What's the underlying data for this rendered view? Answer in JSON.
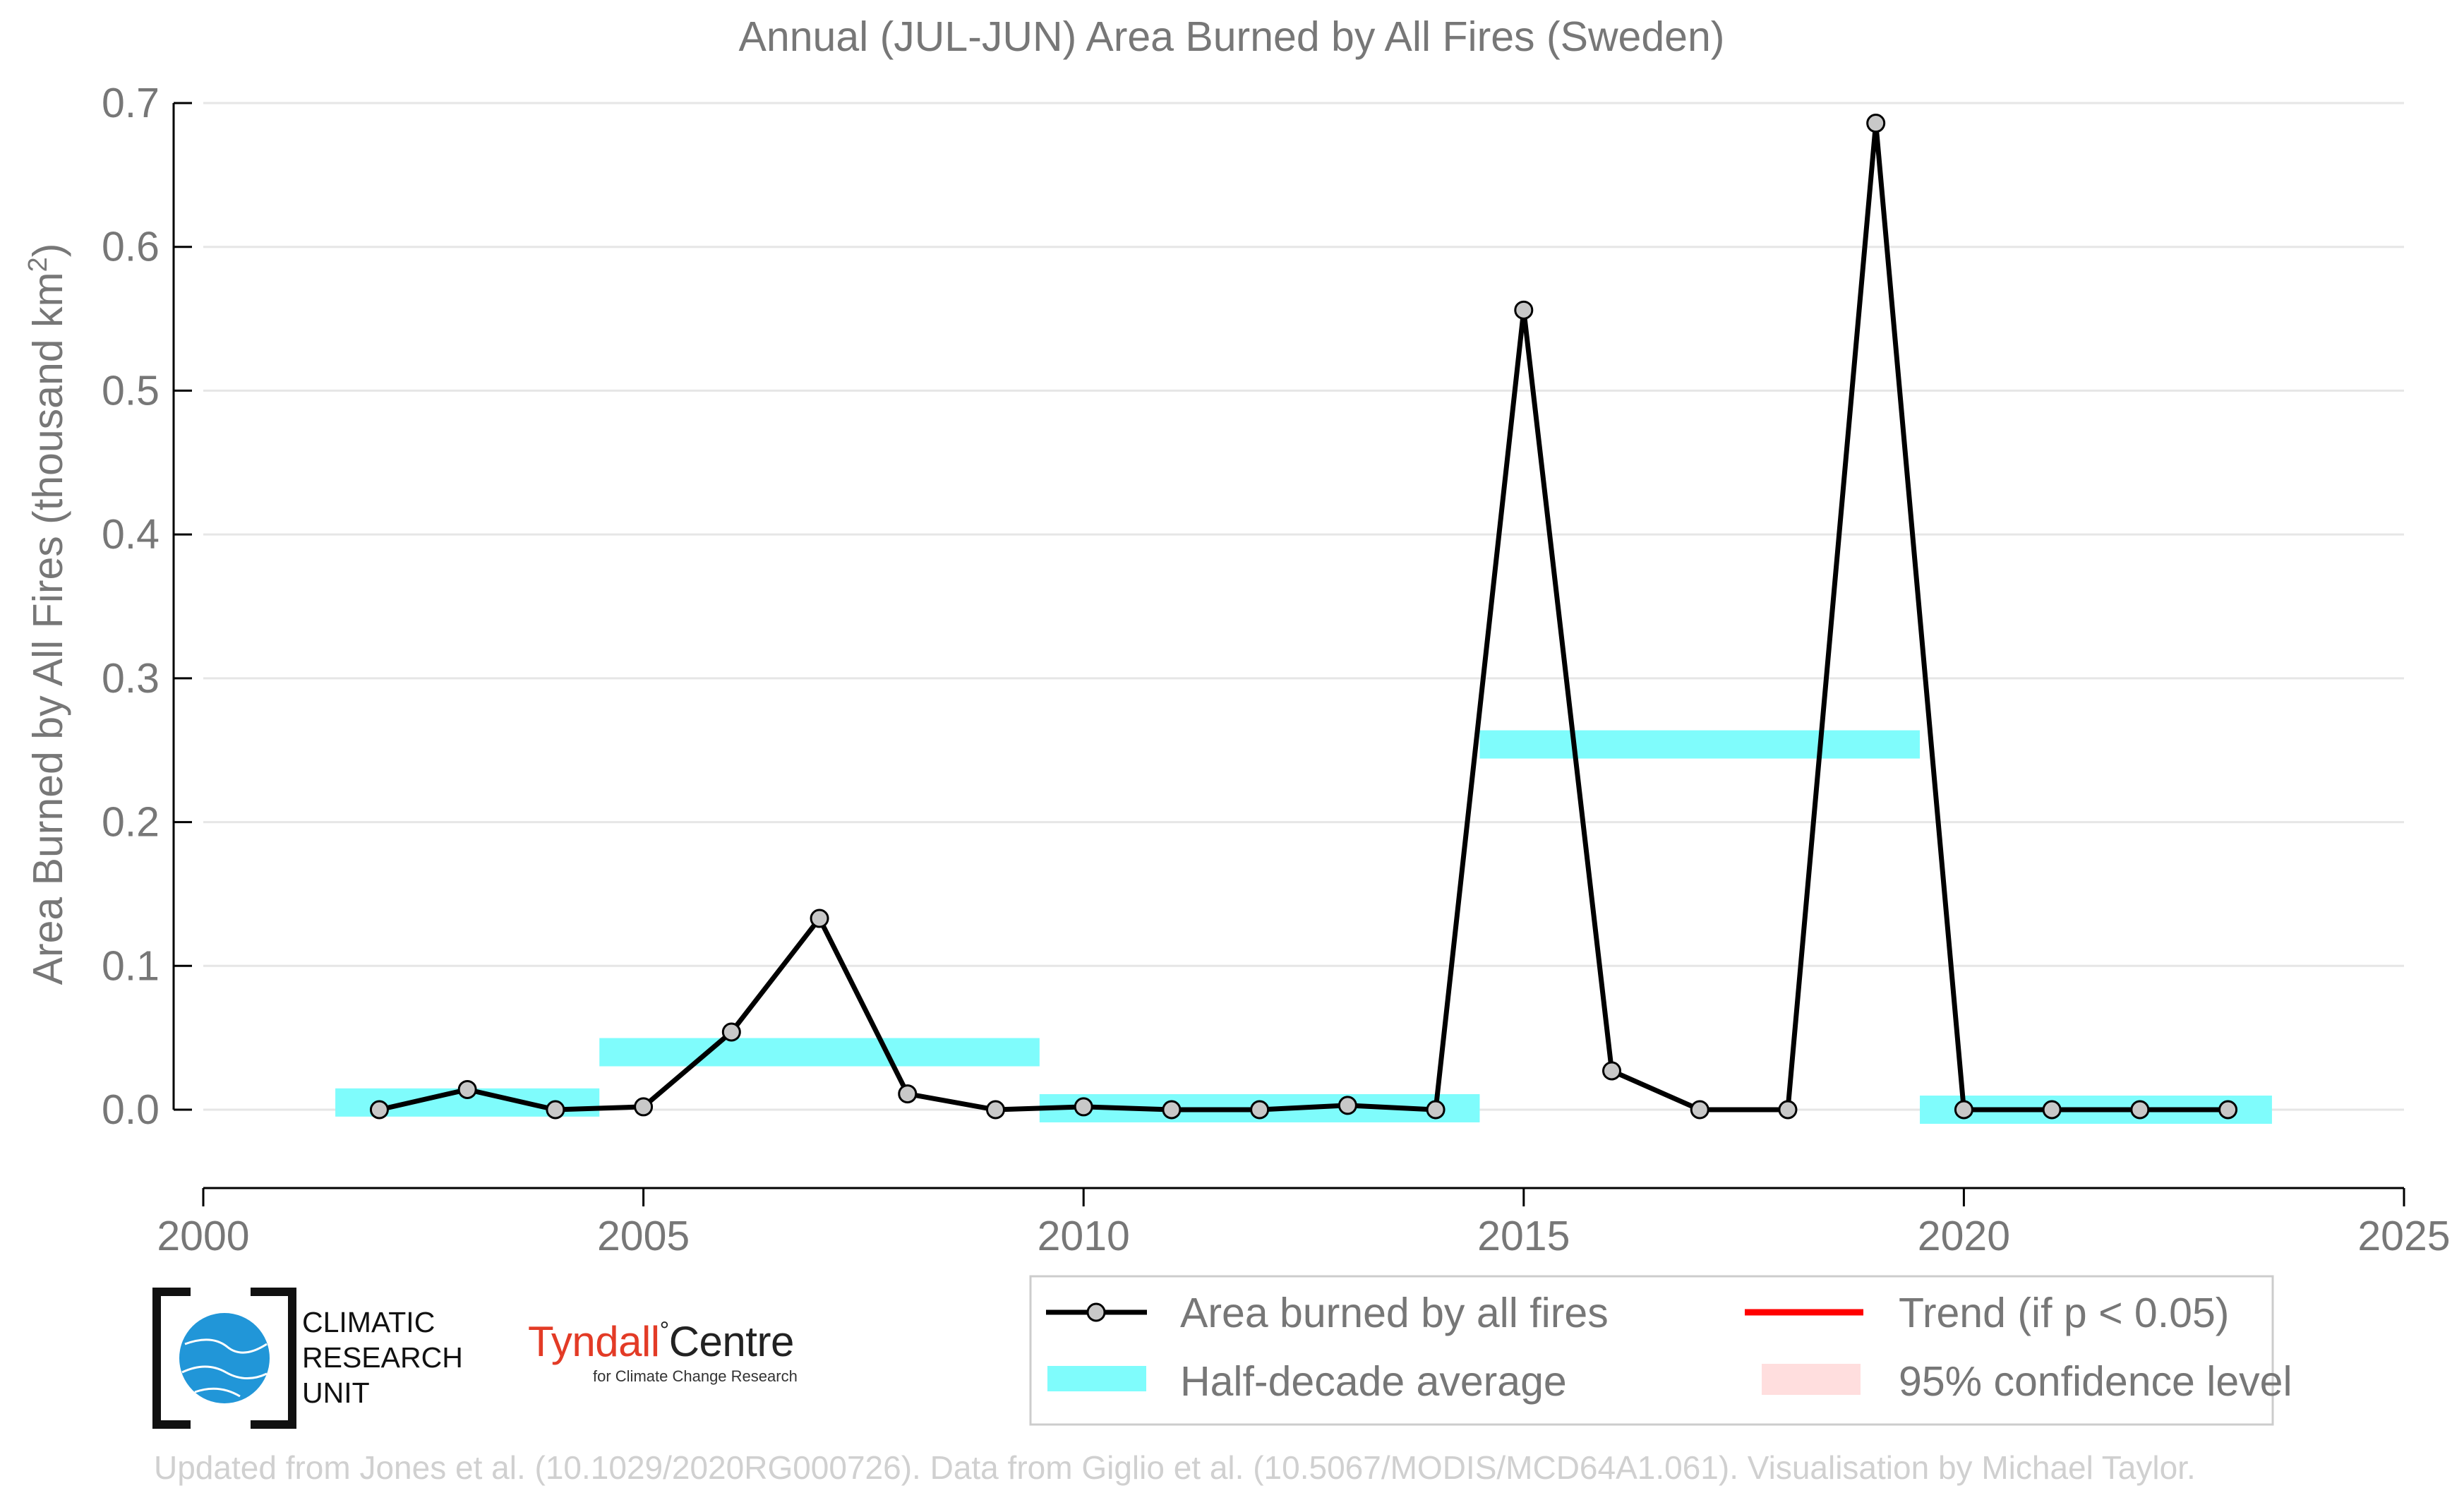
{
  "chart_data": {
    "type": "line",
    "title": "Annual (JUL-JUN) Area Burned by All Fires (Sweden)",
    "ylabel": "Area Burned by All Fires (thousand km",
    "ylabel_superscript": "2",
    "ylabel_suffix": ")",
    "xlim": [
      2000,
      2025
    ],
    "ylim": [
      -0.055,
      0.7
    ],
    "xticks": [
      2000,
      2005,
      2010,
      2015,
      2020,
      2025
    ],
    "yticks": [
      0.0,
      0.1,
      0.2,
      0.3,
      0.4,
      0.5,
      0.6,
      0.7
    ],
    "ytick_labels": [
      "0.0",
      "0.1",
      "0.2",
      "0.3",
      "0.4",
      "0.5",
      "0.6",
      "0.7"
    ],
    "grid": "horizontal",
    "series": [
      {
        "name": "Area burned by all fires",
        "color": "#000000",
        "marker_fill": "#c8c8c8",
        "x": [
          2002,
          2003,
          2004,
          2005,
          2006,
          2007,
          2008,
          2009,
          2010,
          2011,
          2012,
          2013,
          2014,
          2015,
          2016,
          2017,
          2018,
          2019,
          2020,
          2021,
          2022,
          2023
        ],
        "y": [
          0.0,
          0.014,
          0.0,
          0.002,
          0.054,
          0.133,
          0.011,
          0.0,
          0.002,
          0.0,
          0.0,
          0.003,
          0.0,
          0.556,
          0.027,
          0.0,
          0.0,
          0.686,
          0.0,
          0.0,
          0.0,
          0.0
        ]
      }
    ],
    "half_decade_average": {
      "name": "Half-decade average",
      "color": "#7ffcfc",
      "segments": [
        {
          "x0": 2001.5,
          "x1": 2004.5,
          "y": 0.005
        },
        {
          "x0": 2004.5,
          "x1": 2009.5,
          "y": 0.04
        },
        {
          "x0": 2009.5,
          "x1": 2014.5,
          "y": 0.001
        },
        {
          "x0": 2014.5,
          "x1": 2019.5,
          "y": 0.254
        },
        {
          "x0": 2019.5,
          "x1": 2023.5,
          "y": 0.0
        }
      ]
    },
    "legend": {
      "placement": "bottom-right",
      "items": [
        {
          "label": "Area burned by all fires",
          "kind": "line-marker",
          "color": "#000000"
        },
        {
          "label": "Trend (if p < 0.05)",
          "kind": "line",
          "color": "#ff0000"
        },
        {
          "label": "Half-decade average",
          "kind": "band",
          "color": "#7ffcfc"
        },
        {
          "label": "95% confidence level",
          "kind": "band",
          "color": "#ffdede"
        }
      ]
    }
  },
  "logos": {
    "cru": [
      "CLIMATIC",
      "RESEARCH",
      "UNIT"
    ],
    "tyndall_part1": "Tyndall",
    "tyndall_degree": "°",
    "tyndall_part2": "Centre",
    "tyndall_sub": "for Climate Change Research"
  },
  "credit": "Updated from Jones et al. (10.1029/2020RG000726). Data from Giglio et al. (10.5067/MODIS/MCD64A1.061). Visualisation by Michael Taylor."
}
